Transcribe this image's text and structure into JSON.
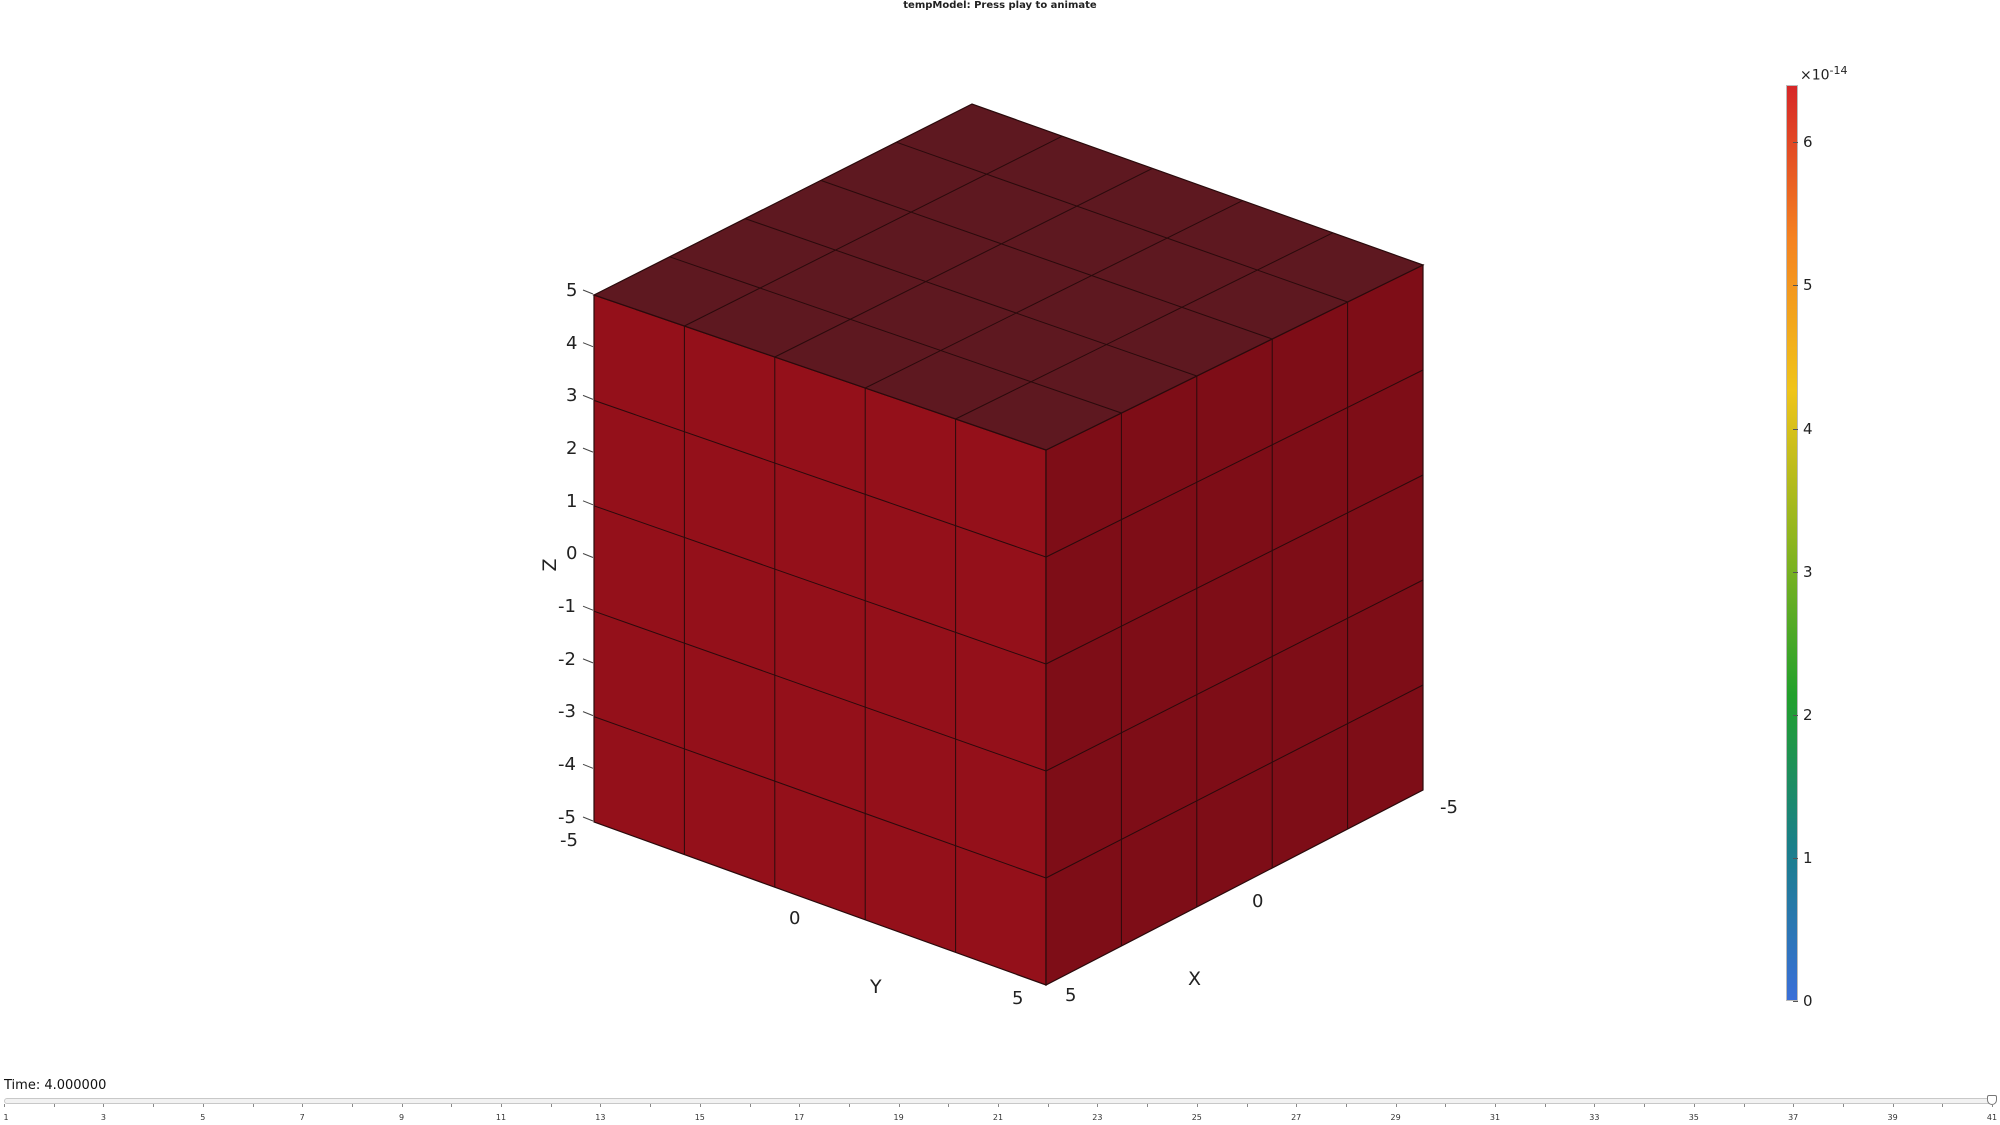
{
  "window": {
    "title": "tempModel: Press play to animate"
  },
  "axes": {
    "x_label": "X",
    "y_label": "Y",
    "z_label": "Z",
    "x_ticks": [
      "-5",
      "0",
      "5"
    ],
    "y_ticks": [
      "-5",
      "0",
      "5"
    ],
    "z_ticks": [
      "5",
      "4",
      "3",
      "2",
      "1",
      "0",
      "-1",
      "-2",
      "-3",
      "-4",
      "-5"
    ]
  },
  "colorbar": {
    "exponent_prefix": "×10",
    "exponent": "-14",
    "labels": [
      "6",
      "5",
      "4",
      "3",
      "2",
      "1",
      "0"
    ],
    "values": [
      6,
      5,
      4,
      3,
      2,
      1,
      0
    ],
    "max_value": 6.4,
    "colors": [
      "#d62728",
      "#f58220",
      "#f0c419",
      "#8cb51f",
      "#22a02c",
      "#1a7f8a",
      "#3a6fd8"
    ]
  },
  "mesh": {
    "front_face_color": "#94101a",
    "right_face_color": "#7e0d17",
    "top_face_color": "#5e1820",
    "divisions": 5
  },
  "animation": {
    "time_label": "Time: 4.000000",
    "current_frame": 41,
    "frame_count": 41,
    "frame_tick_labels": [
      "1",
      "3",
      "5",
      "7",
      "9",
      "11",
      "13",
      "15",
      "17",
      "19",
      "21",
      "23",
      "25",
      "27",
      "29",
      "31",
      "33",
      "35",
      "37",
      "39",
      "41"
    ]
  }
}
